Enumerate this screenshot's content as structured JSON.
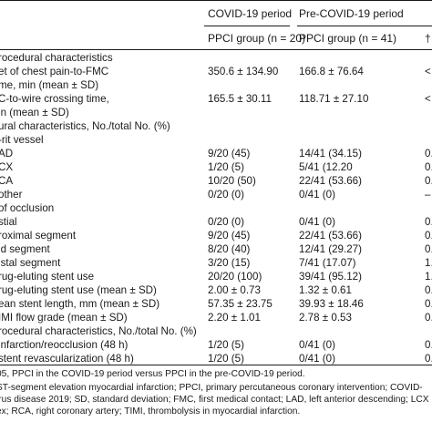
{
  "header": {
    "group1": "COVID-19 period",
    "group2": "Pre-COVID-19 period",
    "sub1": "PPCI group (n = 20)",
    "sub2": "PPCI group (n = 41)",
    "sub3": "†"
  },
  "rows": [
    {
      "label": "rocedural characteristics",
      "v1": "",
      "v2": "",
      "v3": ""
    },
    {
      "label": "et of chest pain-to-FMC",
      "v1": "350.6 ± 134.90",
      "v2": "166.8 ± 76.64",
      "v3": "<"
    },
    {
      "label": "me, min (mean ± SD)",
      "v1": "",
      "v2": "",
      "v3": ""
    },
    {
      "label": "C-to-wire crossing time,",
      "v1": "165.5 ± 30.11",
      "v2": "118.71 ± 27.10",
      "v3": "<"
    },
    {
      "label": "in (mean ± SD)",
      "v1": "",
      "v2": "",
      "v3": ""
    },
    {
      "label": "ural characteristics, No./total No. (%)",
      "v1": "",
      "v2": "",
      "v3": ""
    },
    {
      "label": "-rit vessel",
      "v1": "",
      "v2": "",
      "v3": ""
    },
    {
      "label": "AD",
      "v1": "9/20 (45)",
      "v2": "14/41 (34.15)",
      "v3": "0."
    },
    {
      "label": "CX",
      "v1": "1/20 (5)",
      "v2": "5/41 (12.20",
      "v3": "0."
    },
    {
      "label": "CA",
      "v1": "10/20 (50)",
      "v2": "22/41 (53.66)",
      "v3": "0."
    },
    {
      "label": "other",
      "v1": "0/20 (0)",
      "v2": "0/41 (0)",
      "v3": "–"
    },
    {
      "label": " of occlusion",
      "v1": "",
      "v2": "",
      "v3": ""
    },
    {
      "label": "stial",
      "v1": "0/20 (0)",
      "v2": "0/41 (0)",
      "v3": "0."
    },
    {
      "label": "roximal segment",
      "v1": "9/20 (45)",
      "v2": "22/41 (53.66)",
      "v3": "0."
    },
    {
      "label": "id segment",
      "v1": "8/20 (40)",
      "v2": "12/41 (29.27)",
      "v3": "0."
    },
    {
      "label": "istal segment",
      "v1": "3/20 (15)",
      "v2": "7/41 (17.07)",
      "v3": "1."
    },
    {
      "label": "rug-eluting stent use",
      "v1": "20/20 (100)",
      "v2": "39/41 (95.12)",
      "v3": "1."
    },
    {
      "label": "rug-eluting stent use (mean ± SD)",
      "v1": "2.00 ± 0.73",
      "v2": "1.32 ± 0.61",
      "v3": "0."
    },
    {
      "label": "ean stent length, mm (mean ± SD)",
      "v1": "57.35 ± 23.75",
      "v2": "39.93 ± 18.46",
      "v3": "0."
    },
    {
      "label": "IMI flow grade (mean ± SD)",
      "v1": "2.20 ± 1.01",
      "v2": "2.78 ± 0.53",
      "v3": "0."
    },
    {
      "label": "rocedural characteristics, No./total No. (%)",
      "v1": "",
      "v2": "",
      "v3": ""
    },
    {
      "label": "infarction/reocclusion (48 h)",
      "v1": "1/20 (5)",
      "v2": "0/41 (0)",
      "v3": "0."
    },
    {
      "label": "stent revascularization (48 h)",
      "v1": "1/20 (5)",
      "v2": "0/41 (0)",
      "v3": "0."
    }
  ],
  "footnotes": [
    "05, PPCI in the COVID-19 period versus PPCI in the pre-COVID-19 period.",
    "ST-segment elevation myocardial infarction; PPCI, primary percutaneous coronary intervention; COVID-",
    "irus disease 2019; SD, standard deviation; FMC, first medical contact; LAD, left anterior descending; LCX",
    "ex; RCA, right coronary artery; TIMI, thrombolysis in myocardial infarction."
  ]
}
